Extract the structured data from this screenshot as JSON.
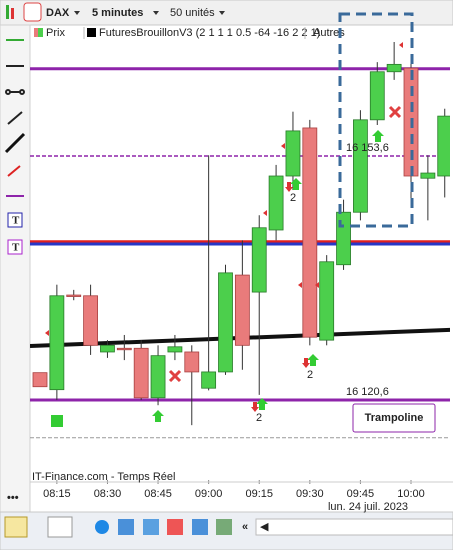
{
  "toolbar": {
    "symbol": "DAX",
    "period": "5 minutes",
    "units": "50 unités"
  },
  "chart_data": {
    "type": "candlestick",
    "legend": [
      {
        "name": "Prix",
        "color": "#4ccf4c"
      },
      {
        "name": "FuturesBrouillonV3 (2 1 1 1 0.5 -64 -16 2 2 1)",
        "color": "#000000"
      },
      {
        "name": "Autres",
        "color": "#888888"
      }
    ],
    "categories": [
      null,
      "08:15",
      null,
      null,
      "08:30",
      null,
      null,
      "08:45",
      null,
      null,
      "09:00",
      null,
      null,
      "09:15",
      null,
      null,
      "09:30",
      null,
      null,
      "09:45",
      null,
      null,
      "10:00",
      null,
      null
    ],
    "open": [
      16124.3,
      16122.0,
      16134.8,
      16134.7,
      16127.1,
      16127.6,
      16127.6,
      16120.9,
      16127.1,
      16127.1,
      16122.2,
      16124.4,
      16137.5,
      16135.2,
      16143.6,
      16150.9,
      16157.4,
      16128.7,
      16138.9,
      16146.0,
      16158.5,
      16165.0,
      16165.5,
      16150.6,
      16150.9
    ],
    "high": [
      16124.3,
      16136.2,
      16135.5,
      16136.2,
      16128.7,
      16129.4,
      16128.7,
      16128.0,
      16129.4,
      16128.0,
      16153.7,
      16138.9,
      16142.2,
      16145.6,
      16152.4,
      16159.6,
      16158.5,
      16140.2,
      16147.7,
      16159.8,
      16166.3,
      16171.3,
      16166.3,
      16153.7,
      16160.0
    ],
    "low": [
      16122.4,
      16120.6,
      16134.1,
      16126.7,
      16126.3,
      16126.0,
      16120.6,
      16119.9,
      16126.0,
      16117.2,
      16121.9,
      16124.0,
      16124.7,
      16121.3,
      16142.2,
      16149.0,
      16128.0,
      16128.0,
      16138.2,
      16144.9,
      16157.8,
      16163.9,
      16147.7,
      16144.9,
      16148.0
    ],
    "close": [
      16122.4,
      16134.7,
      16134.7,
      16128.0,
      16128.0,
      16127.5,
      16120.9,
      16126.6,
      16127.8,
      16124.4,
      16124.4,
      16137.8,
      16128.0,
      16143.9,
      16150.9,
      16157.0,
      16129.1,
      16139.3,
      16146.0,
      16158.5,
      16165.0,
      16166.0,
      16150.9,
      16151.3,
      16159.0
    ],
    "up_color": "#4ccf4c",
    "down_color": "#e97b7b",
    "ylim": [
      16110,
      16172
    ],
    "levels": [
      {
        "value": 16165.4,
        "color": "#8e24aa"
      },
      {
        "value": 16153.6,
        "label": "16 153,6",
        "color": "#8e24aa",
        "dashed": true
      },
      {
        "value": 16142.0,
        "color": "#e02020"
      },
      {
        "value": 16141.7,
        "color": "#2636c8"
      },
      {
        "value": 16120.6,
        "label": "16 120,6",
        "color": "#8e24aa"
      },
      {
        "value": 16115.5,
        "color": "#999999",
        "dashed": true
      }
    ],
    "trendline": {
      "start": 16127.9,
      "end": 16130.1,
      "color": "#111111"
    },
    "annotations": [
      "2",
      "2",
      "2"
    ],
    "date_label": "lun. 24 juil. 2023",
    "button": "Trampoline",
    "source": "IT-Finance.com - Temps Réel"
  }
}
